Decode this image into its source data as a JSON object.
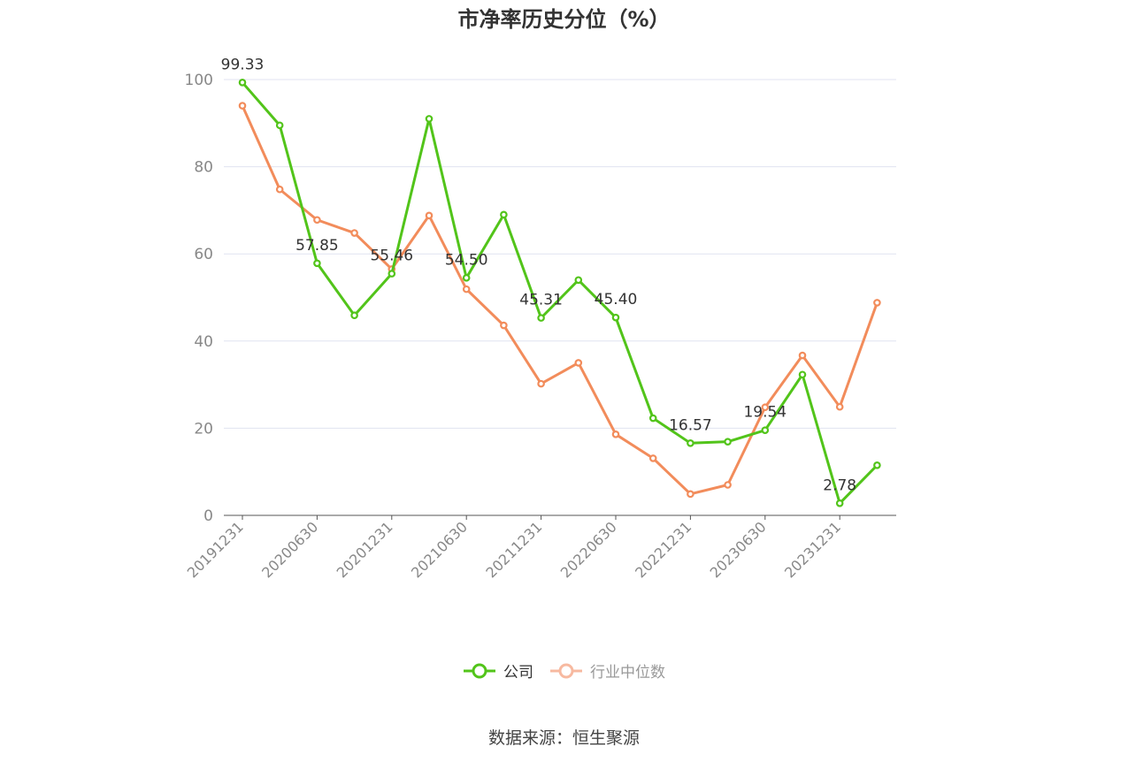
{
  "chart_data": {
    "type": "line",
    "title": "市净率历史分位（%）",
    "x": [
      "20191231",
      "20200331",
      "20200630",
      "20200930",
      "20201231",
      "20210331",
      "20210630",
      "20210930",
      "20211231",
      "20220331",
      "20220630",
      "20220930",
      "20221231",
      "20230331",
      "20230630",
      "20230930",
      "20231231",
      "20240331"
    ],
    "x_tick_labels": [
      "20191231",
      "20200630",
      "20201231",
      "20210630",
      "20211231",
      "20220630",
      "20221231",
      "20230630",
      "20231231"
    ],
    "ylim": [
      0,
      100
    ],
    "y_ticks": [
      0,
      20,
      40,
      60,
      80,
      100
    ],
    "grid": "horizontal",
    "legend_position": "bottom-center",
    "series": [
      {
        "name": "公司",
        "color": "#52c41a",
        "values": [
          99.33,
          89.5,
          57.85,
          45.9,
          55.46,
          91.0,
          54.5,
          69.0,
          45.31,
          54.0,
          45.4,
          22.3,
          16.57,
          16.9,
          19.54,
          32.3,
          2.78,
          11.5
        ],
        "labeled_indices": [
          0,
          2,
          4,
          6,
          8,
          10,
          12,
          14,
          16
        ]
      },
      {
        "name": "行业中位数",
        "color": "#f28c5b",
        "values": [
          94.0,
          74.8,
          67.8,
          64.8,
          56.5,
          68.8,
          51.9,
          43.6,
          30.2,
          35.0,
          18.6,
          13.1,
          4.9,
          7.0,
          24.8,
          36.7,
          24.9,
          48.8
        ]
      }
    ]
  },
  "legend": {
    "items": [
      {
        "label": "公司",
        "color": "#52c41a",
        "active": true
      },
      {
        "label": "行业中位数",
        "color": "#f7b9a0",
        "active": false
      }
    ]
  },
  "source": "数据来源：恒生聚源"
}
